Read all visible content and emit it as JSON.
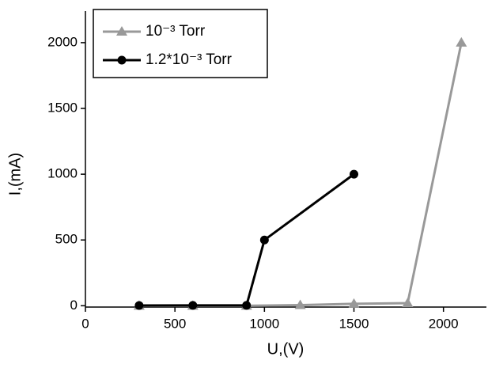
{
  "chart_data": {
    "type": "line",
    "x_label": "U,(V)",
    "y_label": "I,(mA)",
    "series": [
      {
        "name": "10⁻³ Torr",
        "color": "#999999",
        "marker": "triangle",
        "x": [
          300,
          600,
          900,
          1200,
          1500,
          1800,
          2100
        ],
        "values": [
          0,
          0,
          0,
          5,
          15,
          20,
          2000
        ]
      },
      {
        "name": "1.2*10⁻³ Torr",
        "color": "#000000",
        "marker": "circle",
        "x": [
          300,
          600,
          900,
          1000,
          1500
        ],
        "values": [
          2,
          3,
          3,
          500,
          1000
        ]
      }
    ],
    "xlim": [
      0,
      2240
    ],
    "xticks": [
      0,
      500,
      1000,
      1500,
      2000
    ],
    "ylim": [
      -10,
      2240
    ],
    "yticks": [
      0,
      500,
      1000,
      1500,
      2000
    ],
    "grid": false,
    "legend": "top-left"
  }
}
